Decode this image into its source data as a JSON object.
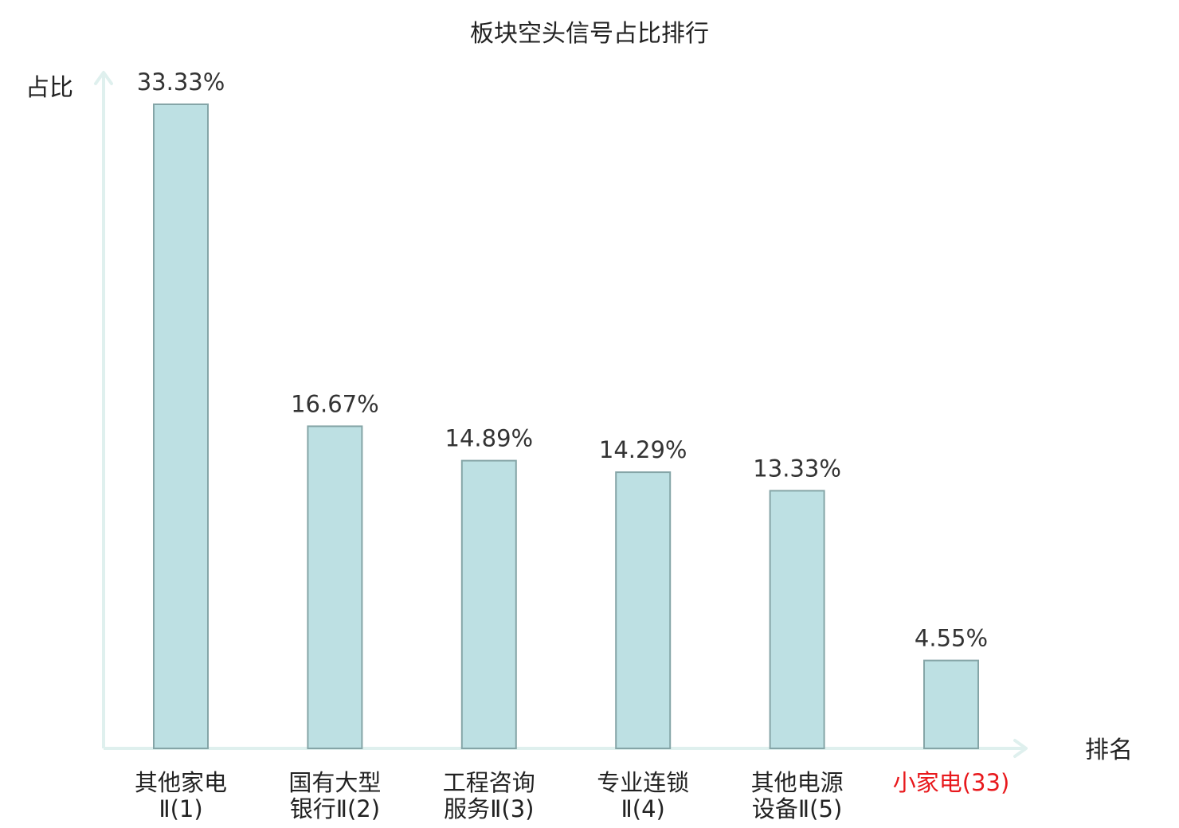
{
  "chart_data": {
    "type": "bar",
    "title": "板块空头信号占比排行",
    "ylabel": "占比",
    "xlabel": "排名",
    "unit": "%",
    "ylim": [
      0,
      33.33
    ],
    "categories": [
      {
        "lines": [
          "其他家电",
          "Ⅱ(1)"
        ],
        "highlight": false
      },
      {
        "lines": [
          "国有大型",
          "银行Ⅱ(2)"
        ],
        "highlight": false
      },
      {
        "lines": [
          "工程咨询",
          "服务Ⅱ(3)"
        ],
        "highlight": false
      },
      {
        "lines": [
          "专业连锁",
          "Ⅱ(4)"
        ],
        "highlight": false
      },
      {
        "lines": [
          "其他电源",
          "设备Ⅱ(5)"
        ],
        "highlight": false
      },
      {
        "lines": [
          "小家电(33)"
        ],
        "highlight": true
      }
    ],
    "values": [
      33.33,
      16.67,
      14.89,
      14.29,
      13.33,
      4.55
    ],
    "value_labels": [
      "33.33%",
      "16.67%",
      "14.89%",
      "14.29%",
      "13.33%",
      "4.55%"
    ],
    "colors": {
      "bar_fill": "#bde0e3",
      "bar_stroke": "#85a5a7",
      "axis": "#dff0ee",
      "highlight_text": "#e8181c",
      "text": "#222222"
    }
  }
}
